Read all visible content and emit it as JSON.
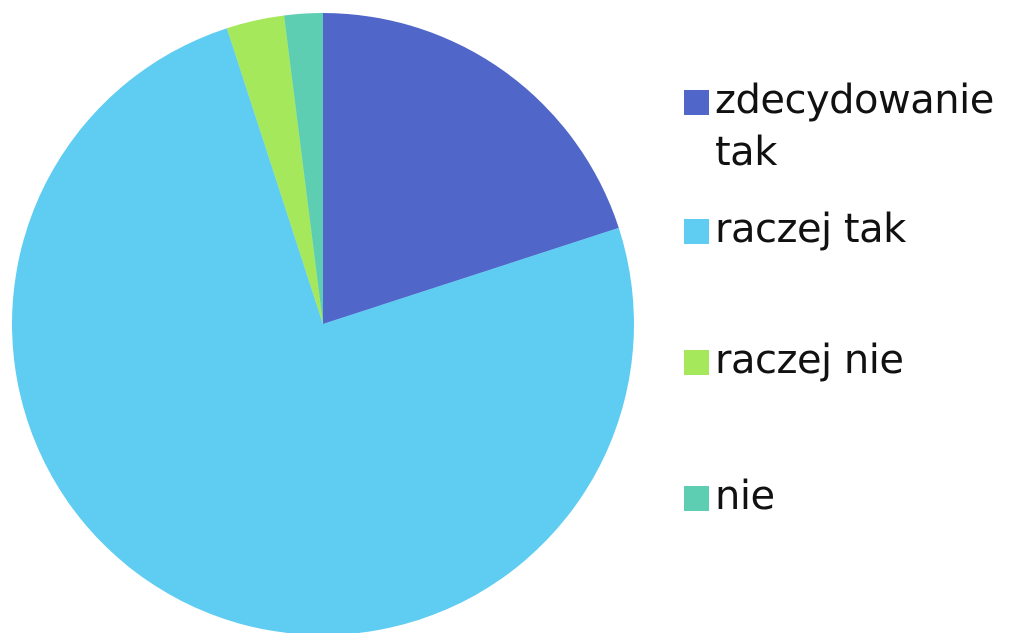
{
  "chart_data": {
    "type": "pie",
    "categories": [
      "zdecydowanie tak",
      "raczej tak",
      "raczej nie",
      "nie"
    ],
    "values": [
      20,
      75,
      3,
      2
    ],
    "colors": [
      "#5066C8",
      "#5FCCF2",
      "#A6E85C",
      "#5ECEB2"
    ],
    "title": "",
    "legend": {
      "position": "right",
      "items": [
        "zdecydowanie tak",
        "raczej tak",
        "raczej nie",
        "nie"
      ]
    }
  }
}
